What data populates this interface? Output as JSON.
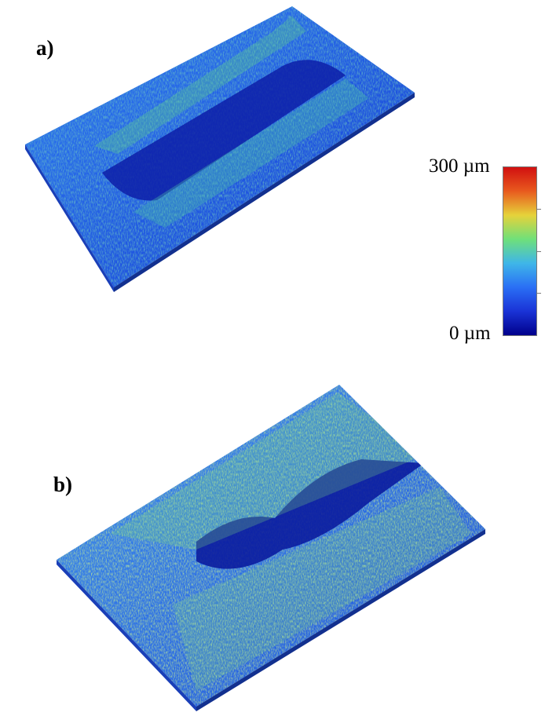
{
  "panels": [
    {
      "label": "a)"
    },
    {
      "label": "b)"
    }
  ],
  "colorbar": {
    "max_label": "300 µm",
    "min_label": "0 µm",
    "colors": [
      "#00008b",
      "#1a33d6",
      "#2a6ff5",
      "#3fb6e8",
      "#6fe07a",
      "#e6d23a",
      "#e85a1e",
      "#d11010"
    ]
  }
}
